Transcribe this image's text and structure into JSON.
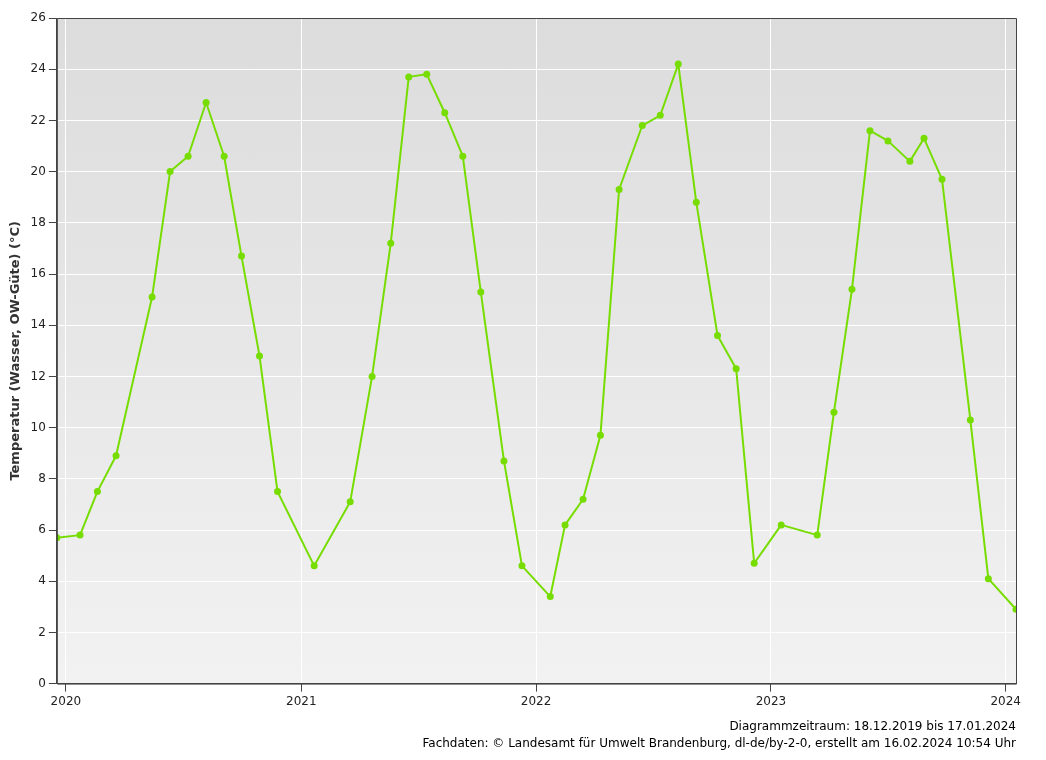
{
  "chart_data": {
    "type": "line",
    "ylabel": "Temperatur (Wasser, OW-Güte) (°C)",
    "x": [
      "2019-12-18",
      "2020-01-23",
      "2020-02-19",
      "2020-03-19",
      "2020-05-14",
      "2020-06-11",
      "2020-07-09",
      "2020-08-06",
      "2020-09-03",
      "2020-09-30",
      "2020-10-28",
      "2020-11-25",
      "2021-01-21",
      "2021-03-18",
      "2021-04-21",
      "2021-05-20",
      "2021-06-17",
      "2021-07-15",
      "2021-08-12",
      "2021-09-09",
      "2021-10-07",
      "2021-11-12",
      "2021-12-10",
      "2022-01-23",
      "2022-02-15",
      "2022-03-15",
      "2022-04-11",
      "2022-05-10",
      "2022-06-15",
      "2022-07-13",
      "2022-08-10",
      "2022-09-07",
      "2022-10-10",
      "2022-11-08",
      "2022-12-06",
      "2023-01-17",
      "2023-03-14",
      "2023-04-09",
      "2023-05-07",
      "2023-06-04",
      "2023-07-02",
      "2023-08-05",
      "2023-08-27",
      "2023-09-24",
      "2023-11-07",
      "2023-12-05",
      "2024-01-17"
    ],
    "series": [
      {
        "color": "#77dd00",
        "values": [
          5.7,
          5.8,
          7.5,
          8.9,
          15.1,
          20.0,
          20.6,
          22.7,
          20.6,
          16.7,
          12.8,
          7.5,
          4.6,
          7.1,
          12.0,
          17.2,
          23.7,
          23.8,
          22.3,
          20.6,
          15.3,
          8.7,
          4.6,
          3.4,
          6.2,
          7.2,
          9.7,
          19.3,
          21.8,
          22.2,
          24.2,
          18.8,
          13.6,
          12.3,
          4.7,
          6.2,
          5.8,
          10.6,
          15.4,
          21.6,
          21.2,
          20.4,
          21.3,
          19.7,
          10.3,
          4.1,
          2.9
        ]
      }
    ],
    "xlim": [
      "2019-12-18",
      "2024-01-17"
    ],
    "xticks": [
      "2020",
      "2021",
      "2022",
      "2023",
      "2024"
    ],
    "ylim": [
      0,
      26
    ],
    "yticks": [
      0,
      2,
      4,
      6,
      8,
      10,
      12,
      14,
      16,
      18,
      20,
      22,
      24,
      26
    ],
    "grid": true,
    "legend": false,
    "marker": "circle",
    "line_style": "solid",
    "annotations": [
      "Diagrammzeitraum: 18.12.2019 bis 17.01.2024",
      "Fachdaten: © Landesamt für Umwelt Brandenburg, dl-de/by-2-0, erstellt am 16.02.2024 10:54 Uhr"
    ]
  }
}
